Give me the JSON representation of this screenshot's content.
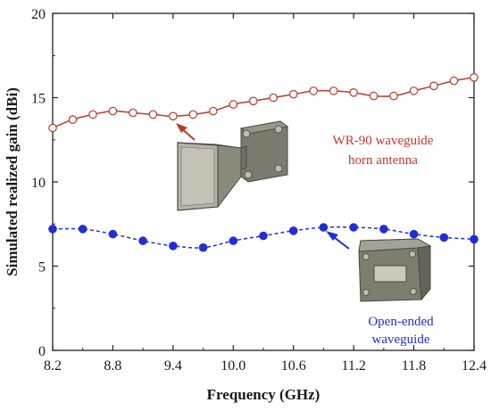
{
  "chart_data": {
    "type": "line",
    "title": "",
    "xlabel": "Frequency (GHz)",
    "ylabel": "Simulated realized gain (dBi)",
    "xlim": [
      8.2,
      12.4
    ],
    "ylim": [
      0,
      20
    ],
    "x_ticks": [
      "8.2",
      "8.8",
      "9.4",
      "10.0",
      "10.6",
      "11.2",
      "11.8",
      "12.4"
    ],
    "y_ticks": [
      "0",
      "5",
      "10",
      "15",
      "20"
    ],
    "grid": false,
    "legend": "none",
    "series": [
      {
        "color": "#c0392b",
        "marker": "open-circle",
        "line_style": "solid",
        "x": [
          8.2,
          8.4,
          8.6,
          8.8,
          9.0,
          9.2,
          9.4,
          9.6,
          9.8,
          10.0,
          10.2,
          10.4,
          10.6,
          10.8,
          11.0,
          11.2,
          11.4,
          11.6,
          11.8,
          12.0,
          12.2,
          12.4
        ],
        "values": [
          13.2,
          13.7,
          14.0,
          14.2,
          14.1,
          14.0,
          13.9,
          14.0,
          14.2,
          14.6,
          14.8,
          15.0,
          15.2,
          15.4,
          15.4,
          15.3,
          15.1,
          15.1,
          15.4,
          15.7,
          16.0,
          16.2
        ]
      },
      {
        "color": "#1f2fd6",
        "marker": "filled-circle",
        "line_style": "dashed",
        "x": [
          8.2,
          8.5,
          8.8,
          9.1,
          9.4,
          9.7,
          10.0,
          10.3,
          10.6,
          10.9,
          11.2,
          11.5,
          11.8,
          12.1,
          12.4
        ],
        "values": [
          7.2,
          7.2,
          6.9,
          6.5,
          6.2,
          6.1,
          6.5,
          6.8,
          7.1,
          7.3,
          7.3,
          7.2,
          6.9,
          6.7,
          6.6
        ]
      }
    ],
    "annotations": [
      {
        "lines": [
          "WR-90 waveguide",
          "horn antenna"
        ],
        "color": "#c0392b",
        "arrow_to": [
          9.4,
          13.9
        ],
        "illustration": "horn-antenna"
      },
      {
        "lines": [
          "Open-ended",
          "waveguide"
        ],
        "color": "#1f2fd6",
        "arrow_to": [
          11.0,
          7.25
        ],
        "illustration": "open-ended-waveguide"
      }
    ]
  }
}
